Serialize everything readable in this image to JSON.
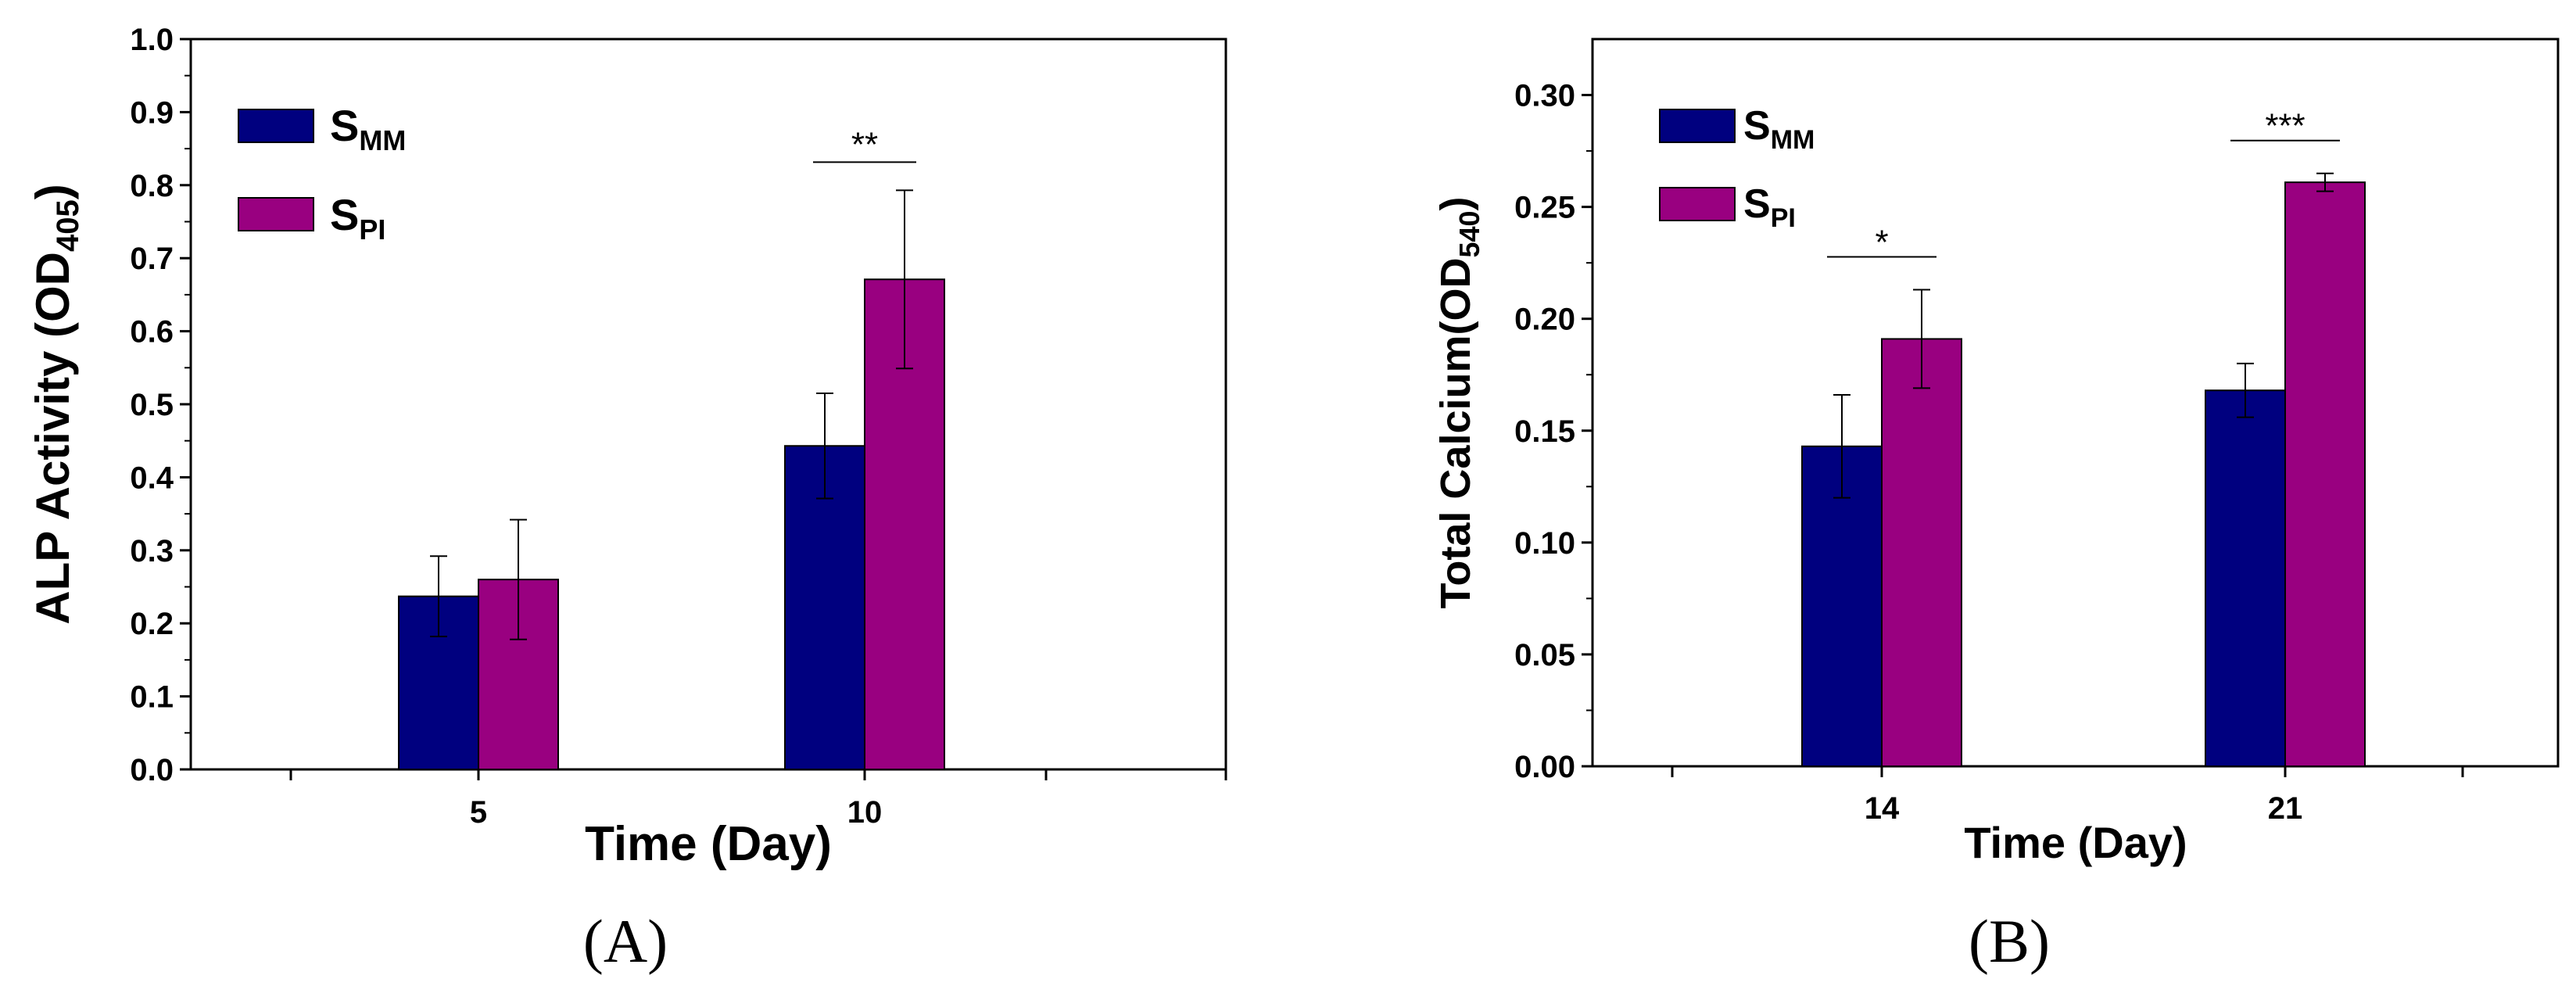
{
  "chart_data": [
    {
      "panel": "(A)",
      "type": "bar",
      "xlabel": "Time (Day)",
      "ylabel": "ALP Activity (OD",
      "ylabel_sub": "405",
      "ylabel_end": ")",
      "ylim": [
        0.0,
        1.0
      ],
      "yticks": [
        "0.0",
        "0.1",
        "0.2",
        "0.3",
        "0.4",
        "0.5",
        "0.6",
        "0.7",
        "0.8",
        "0.9",
        "1.0"
      ],
      "categories": [
        "5",
        "10"
      ],
      "series": [
        {
          "name": "S",
          "sub": "MM",
          "color": "#00007f",
          "values": [
            0.237,
            0.443
          ],
          "errors": [
            0.055,
            0.072
          ]
        },
        {
          "name": "S",
          "sub": "PI",
          "color": "#990080",
          "values": [
            0.26,
            0.671
          ],
          "errors": [
            0.082,
            0.122
          ]
        }
      ],
      "significance": [
        {
          "category": "10",
          "label": "**"
        }
      ]
    },
    {
      "panel": "(B)",
      "type": "bar",
      "xlabel": "Time (Day)",
      "ylabel": "Total Calcium(OD",
      "ylabel_sub": "540",
      "ylabel_end": ")",
      "ylim": [
        0.0,
        0.325
      ],
      "yticks": [
        "0.00",
        "0.05",
        "0.10",
        "0.15",
        "0.20",
        "0.25",
        "0.30"
      ],
      "categories": [
        "14",
        "21"
      ],
      "series": [
        {
          "name": "S",
          "sub": "MM",
          "color": "#00007f",
          "values": [
            0.143,
            0.168
          ],
          "errors": [
            0.023,
            0.012
          ]
        },
        {
          "name": "S",
          "sub": "PI",
          "color": "#990080",
          "values": [
            0.191,
            0.261
          ],
          "errors": [
            0.022,
            0.004
          ]
        }
      ],
      "significance": [
        {
          "category": "14",
          "label": "*"
        },
        {
          "category": "21",
          "label": "***"
        }
      ]
    }
  ]
}
